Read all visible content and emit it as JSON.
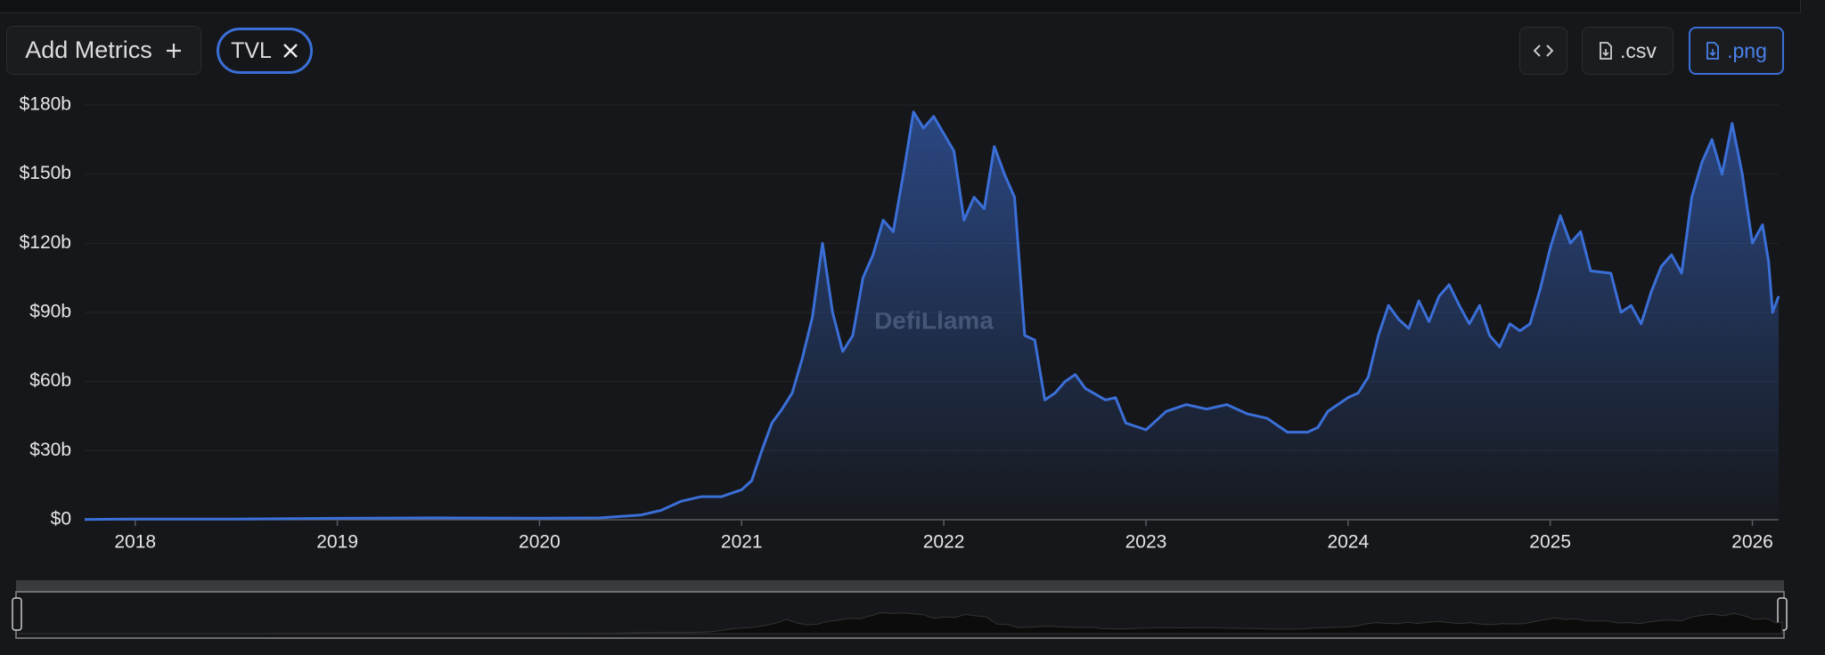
{
  "toolbar": {
    "add_metrics": "Add Metrics",
    "csv": ".csv",
    "png": ".png"
  },
  "chart_data": {
    "type": "area",
    "watermark": "DefiLlama",
    "x": [
      2017.75,
      2018,
      2018.5,
      2019,
      2019.5,
      2020,
      2020.3,
      2020.5,
      2020.6,
      2020.7,
      2020.8,
      2020.9,
      2021,
      2021.05,
      2021.1,
      2021.15,
      2021.2,
      2021.25,
      2021.3,
      2021.35,
      2021.4,
      2021.45,
      2021.5,
      2021.55,
      2021.6,
      2021.65,
      2021.7,
      2021.75,
      2021.8,
      2021.85,
      2021.9,
      2021.95,
      2022.05,
      2022.1,
      2022.15,
      2022.2,
      2022.25,
      2022.3,
      2022.35,
      2022.4,
      2022.45,
      2022.5,
      2022.55,
      2022.6,
      2022.65,
      2022.7,
      2022.8,
      2022.85,
      2022.9,
      2023,
      2023.05,
      2023.1,
      2023.2,
      2023.3,
      2023.4,
      2023.5,
      2023.6,
      2023.7,
      2023.8,
      2023.85,
      2023.9,
      2024,
      2024.05,
      2024.1,
      2024.15,
      2024.2,
      2024.25,
      2024.3,
      2024.35,
      2024.4,
      2024.45,
      2024.5,
      2024.55,
      2024.6,
      2024.65,
      2024.7,
      2024.75,
      2024.8,
      2024.85,
      2024.9,
      2024.95,
      2025,
      2025.05,
      2025.1,
      2025.15,
      2025.2,
      2025.3,
      2025.35,
      2025.4,
      2025.45,
      2025.5,
      2025.55,
      2025.6,
      2025.65,
      2025.7,
      2025.75,
      2025.8,
      2025.85,
      2025.9,
      2025.95,
      2026,
      2026.05,
      2026.08,
      2026.1,
      2026.13
    ],
    "series": [
      {
        "name": "TVL",
        "color": "#3b6fd8",
        "values": [
          0.1,
          0.3,
          0.3,
          0.6,
          0.8,
          0.7,
          0.8,
          2,
          4,
          8,
          10,
          10,
          13,
          17,
          30,
          42,
          48,
          55,
          70,
          88,
          120,
          90,
          73,
          80,
          105,
          115,
          130,
          125,
          150,
          177,
          170,
          175,
          160,
          130,
          140,
          135,
          162,
          150,
          140,
          80,
          78,
          52,
          55,
          60,
          63,
          57,
          52,
          53,
          42,
          39,
          43,
          47,
          50,
          48,
          50,
          46,
          44,
          38,
          38,
          40,
          47,
          53,
          55,
          62,
          80,
          93,
          87,
          83,
          95,
          86,
          97,
          102,
          93,
          85,
          93,
          80,
          75,
          85,
          82,
          85,
          100,
          118,
          132,
          120,
          125,
          108,
          107,
          90,
          93,
          85,
          99,
          110,
          115,
          107,
          140,
          155,
          165,
          150,
          172,
          150,
          120,
          128,
          112,
          90,
          97
        ]
      }
    ],
    "xlim": [
      2017.75,
      2026.13
    ],
    "xticks": [
      2018,
      2019,
      2020,
      2021,
      2022,
      2023,
      2024,
      2025,
      2026
    ],
    "ylim": [
      0,
      180
    ],
    "yticks": [
      {
        "value": 0,
        "label": "$0"
      },
      {
        "value": 30,
        "label": "$30b"
      },
      {
        "value": 60,
        "label": "$60b"
      },
      {
        "value": 90,
        "label": "$90b"
      },
      {
        "value": 120,
        "label": "$120b"
      },
      {
        "value": 150,
        "label": "$150b"
      },
      {
        "value": 180,
        "label": "$180b"
      }
    ],
    "grid": true
  }
}
